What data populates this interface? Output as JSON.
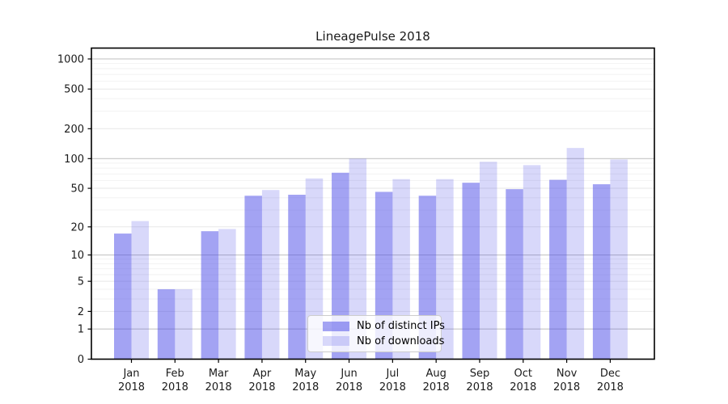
{
  "chart_data": {
    "type": "bar",
    "title": "LineagePulse 2018",
    "categories": [
      "Jan 2018",
      "Feb 2018",
      "Mar 2018",
      "Apr 2018",
      "May 2018",
      "Jun 2018",
      "Jul 2018",
      "Aug 2018",
      "Sep 2018",
      "Oct 2018",
      "Nov 2018",
      "Dec 2018"
    ],
    "series": [
      {
        "name": "Nb of distinct IPs",
        "color": "rgba(72,72,232,0.50)",
        "values": [
          17,
          4,
          18,
          42,
          43,
          72,
          46,
          42,
          57,
          49,
          61,
          55
        ]
      },
      {
        "name": "Nb of downloads",
        "color": "rgba(72,72,232,0.21)",
        "values": [
          23,
          4,
          19,
          48,
          63,
          100,
          62,
          62,
          93,
          86,
          128,
          98
        ]
      }
    ],
    "xlabel": "",
    "ylabel": "",
    "yscale": "log1p",
    "ylim": [
      0,
      1285
    ],
    "y_ticks": [
      0,
      1,
      2,
      5,
      10,
      20,
      50,
      100,
      200,
      500,
      1000
    ],
    "grid": true,
    "legend_position": "lower center"
  },
  "colors": {
    "background": "#ffffff",
    "axis": "#000000",
    "tick_text": "#1a1a1a",
    "grid_decade": "#c6c6c6",
    "grid_labeled": "#e7e7e7",
    "grid_minor": "#f2f2f2",
    "legend_border": "#cccccc",
    "legend_background": "rgba(255,255,255,0.8)"
  }
}
